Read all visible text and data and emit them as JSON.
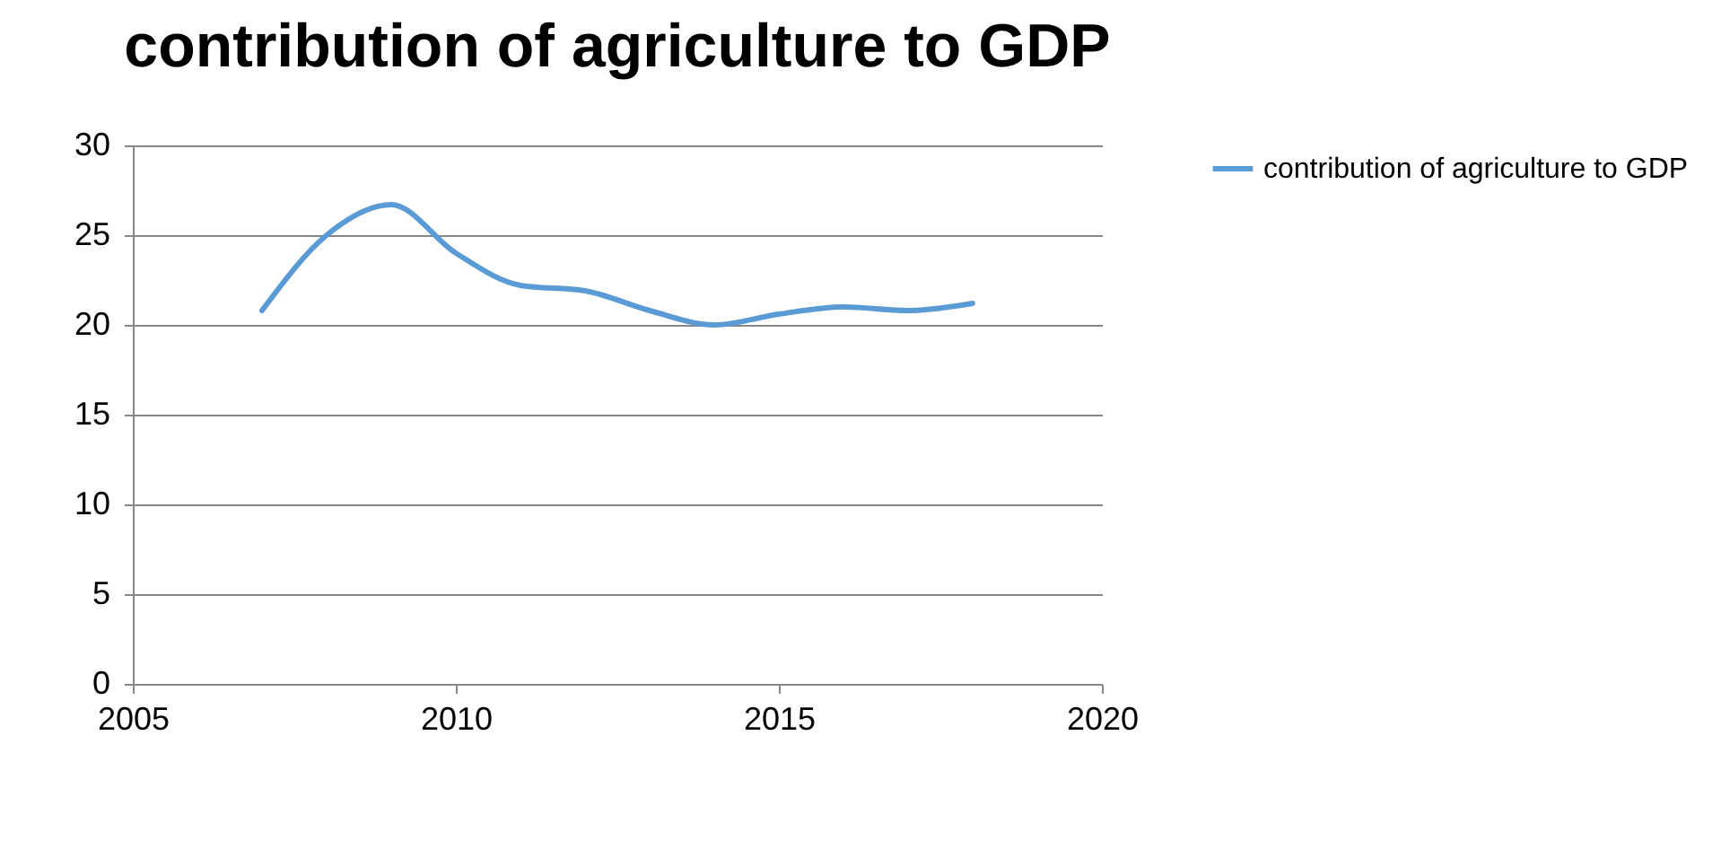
{
  "chart_data": {
    "type": "line",
    "title": "contribution of agriculture to GDP",
    "x": [
      2007,
      2008,
      2009,
      2010,
      2011,
      2012,
      2013,
      2014,
      2015,
      2016,
      2017,
      2018
    ],
    "series": [
      {
        "name": "contribution of agriculture to GDP",
        "color": "#5b9bd5",
        "values": [
          20.8,
          25.0,
          26.7,
          24.0,
          22.2,
          21.9,
          20.8,
          20.0,
          20.6,
          21.0,
          20.8,
          21.2
        ]
      }
    ],
    "xlim": [
      2005,
      2020
    ],
    "xticks": [
      2005,
      2010,
      2015,
      2020
    ],
    "ylim": [
      0,
      30
    ],
    "yticks": [
      0,
      5,
      10,
      15,
      20,
      25,
      30
    ],
    "grid": "y",
    "legend": "right",
    "marker": "none",
    "line_style": "solid"
  }
}
